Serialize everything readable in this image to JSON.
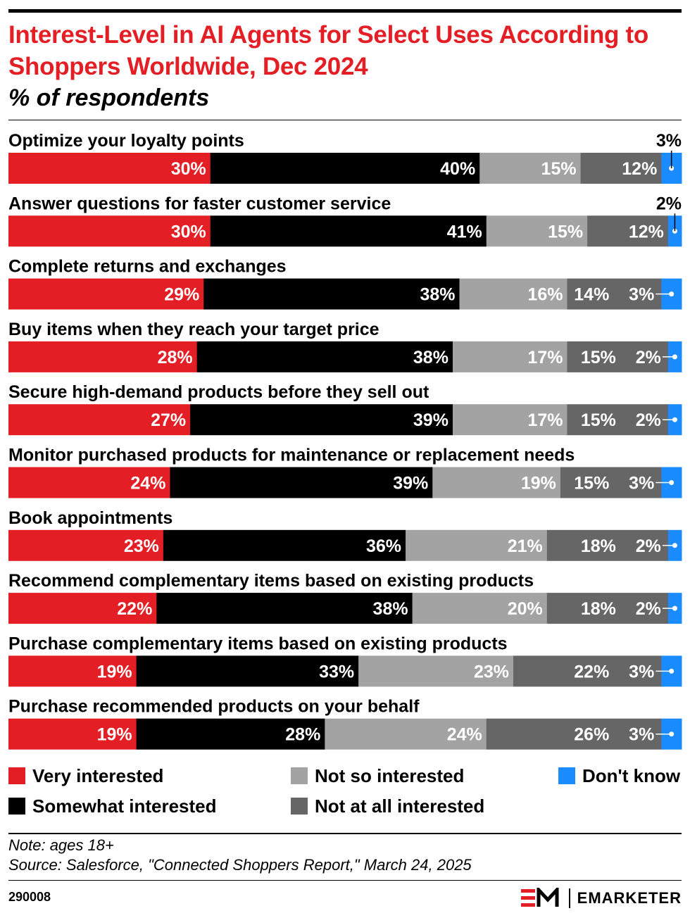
{
  "title": "Interest-Level in AI Agents for Select Uses According to Shoppers Worldwide, Dec 2024",
  "subtitle": "% of respondents",
  "colors": {
    "very": "#e31e24",
    "somewhat": "#000000",
    "not_so": "#a3a3a3",
    "not_at_all": "#666666",
    "dont_know": "#1a8cff"
  },
  "chart_data": {
    "type": "bar",
    "orientation": "horizontal",
    "stacked": true,
    "categories": [
      "Optimize your loyalty points",
      "Answer questions for faster customer service",
      "Complete returns and exchanges",
      "Buy items when they reach your target price",
      "Secure high-demand products before they sell out",
      "Monitor purchased products for maintenance or replacement needs",
      "Book appointments",
      "Recommend complementary items based on existing products",
      "Purchase complementary items based on existing products",
      "Purchase recommended products on your behalf"
    ],
    "series": [
      {
        "name": "Very interested",
        "values": [
          30,
          30,
          29,
          28,
          27,
          24,
          23,
          22,
          19,
          19
        ]
      },
      {
        "name": "Somewhat interested",
        "values": [
          40,
          41,
          38,
          38,
          39,
          39,
          36,
          38,
          33,
          28
        ]
      },
      {
        "name": "Not so interested",
        "values": [
          15,
          15,
          16,
          17,
          17,
          19,
          21,
          20,
          23,
          24
        ]
      },
      {
        "name": "Not at all interested",
        "values": [
          12,
          12,
          14,
          15,
          15,
          15,
          18,
          18,
          22,
          26
        ]
      },
      {
        "name": "Don't know",
        "values": [
          3,
          2,
          3,
          2,
          2,
          3,
          2,
          2,
          3,
          3
        ]
      }
    ],
    "value_suffix": "%",
    "legend_position": "bottom"
  },
  "legend": [
    {
      "label": "Very interested",
      "color_key": "very"
    },
    {
      "label": "Somewhat interested",
      "color_key": "somewhat"
    },
    {
      "label": "Not so interested",
      "color_key": "not_so"
    },
    {
      "label": "Not at all interested",
      "color_key": "not_at_all"
    },
    {
      "label": "Don't know",
      "color_key": "dont_know"
    }
  ],
  "note": "Note: ages 18+",
  "source": "Source: Salesforce, \"Connected Shoppers Report,\" March 24, 2025",
  "chart_id": "290008",
  "brand": "EMARKETER"
}
